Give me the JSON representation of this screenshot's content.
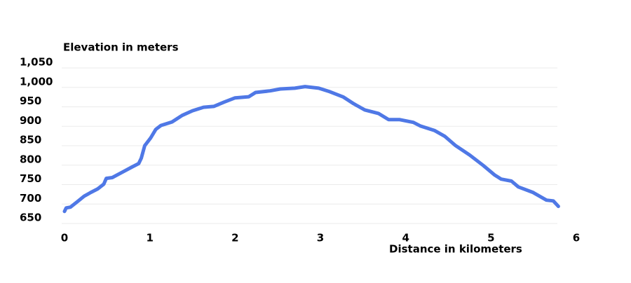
{
  "chart_data": {
    "type": "line",
    "y_axis_label": "Elevation in meters",
    "x_axis_label": "Distance in kilometers",
    "x": [
      0,
      0.02,
      0.07,
      0.15,
      0.23,
      0.31,
      0.39,
      0.46,
      0.49,
      0.56,
      0.68,
      0.79,
      0.87,
      0.9,
      0.94,
      1.01,
      1.07,
      1.13,
      1.26,
      1.38,
      1.5,
      1.63,
      1.75,
      1.87,
      2.0,
      2.16,
      2.24,
      2.41,
      2.53,
      2.7,
      2.82,
      2.98,
      3.11,
      3.27,
      3.39,
      3.52,
      3.68,
      3.8,
      3.93,
      4.09,
      4.17,
      4.34,
      4.46,
      4.58,
      4.75,
      4.91,
      5.04,
      5.12,
      5.24,
      5.32,
      5.49,
      5.65,
      5.73,
      5.79
    ],
    "series": [
      {
        "color": "#4f78e6",
        "values": [
          681,
          690,
          692,
          706,
          720,
          730,
          739,
          751,
          766,
          768,
          782,
          795,
          804,
          818,
          850,
          870,
          892,
          902,
          911,
          928,
          940,
          949,
          951,
          962,
          973,
          976,
          987,
          991,
          996,
          998,
          1002,
          998,
          989,
          975,
          958,
          942,
          933,
          917,
          917,
          910,
          901,
          889,
          874,
          851,
          826,
          799,
          775,
          764,
          759,
          744,
          730,
          710,
          708,
          694
        ]
      }
    ],
    "xlim": [
      0,
      6
    ],
    "xticks": [
      0,
      1,
      2,
      3,
      4,
      5,
      6
    ],
    "ylim": [
      650,
      1050
    ],
    "yticks": [
      650,
      700,
      750,
      800,
      850,
      900,
      950,
      {
        "value": 1000,
        "label": "1,000"
      },
      {
        "value": 1050,
        "label": "1,050"
      }
    ],
    "grid": true
  }
}
